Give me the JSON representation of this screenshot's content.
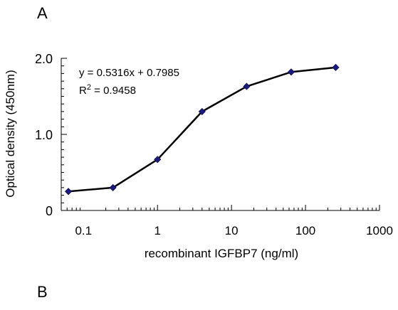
{
  "panel_labels": [
    "A",
    "B"
  ],
  "chart_data": {
    "type": "line",
    "xscale": "log",
    "xlim": [
      0.05,
      1000
    ],
    "ylim": [
      0,
      2.0
    ],
    "xlabel": "recombinant IGFBP7 (ng/ml)",
    "ylabel": "Optical density (450nm)",
    "x_ticks": [
      0.1,
      1,
      10,
      100,
      1000
    ],
    "x_tick_labels": [
      "0.1",
      "1",
      "10",
      "100",
      "1000"
    ],
    "y_ticks": [
      0,
      1.0,
      2.0
    ],
    "y_tick_labels": [
      "0",
      "1.0",
      "2.0"
    ],
    "grid": false,
    "series": [
      {
        "x": [
          0.0625,
          0.25,
          1,
          4,
          16,
          64,
          256
        ],
        "y": [
          0.25,
          0.3,
          0.67,
          1.3,
          1.63,
          1.82,
          1.88
        ],
        "color": "#000000",
        "marker": "diamond",
        "marker_color": "#1a1a80"
      }
    ],
    "annotations": [
      {
        "id": "equation",
        "text": "y = 0.5316x + 0.7985"
      },
      {
        "id": "r2_base",
        "text": "R"
      },
      {
        "id": "r2_sup",
        "text": "2"
      },
      {
        "id": "r2_rest",
        "text": " = 0.9458"
      }
    ]
  }
}
